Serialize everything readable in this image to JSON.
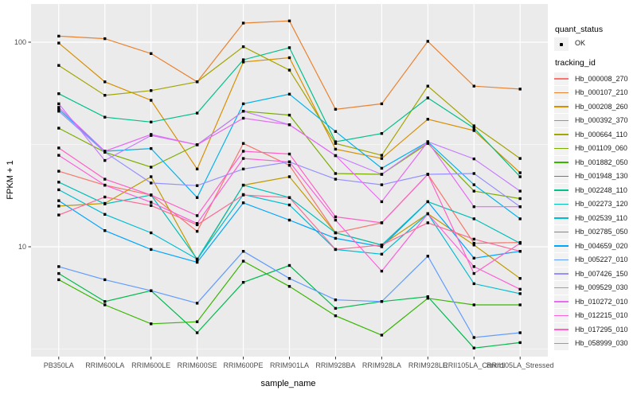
{
  "legend": {
    "quant_status": {
      "title": "quant_status",
      "items": [
        {
          "label": "OK",
          "marker": "black-point"
        }
      ]
    },
    "tracking_id": {
      "title": "tracking_id"
    }
  },
  "chart_data": {
    "type": "line",
    "title": "",
    "xlabel": "sample_name",
    "ylabel": "FPKM + 1",
    "y_scale": "log10",
    "ylim": [
      2.9,
      154
    ],
    "grid": true,
    "legend_position": "right",
    "y_axis_ticks": [
      {
        "value": 100,
        "label": "100"
      },
      {
        "value": 10,
        "label": "10"
      }
    ],
    "y_minor_gridlines": [
      31.623,
      3.1623
    ],
    "style": {
      "panel_bg": "#EBEBEB",
      "grid_color": "#FFFFFF",
      "marker_color": "#000000",
      "axis_text_color": "#4D4D4D",
      "tick_color": "#333333",
      "legend_key_bg": "#F2F2F2"
    },
    "categories": [
      "PB350LA",
      "RRIM600LA",
      "RRIM600LE",
      "RRIM600SE",
      "RRIM600PE",
      "RRIM901LA",
      "RRIM928BA",
      "RRIM928LA",
      "RRIM928LE",
      "RRII105LA_Control",
      "RRII105LA_Stressed"
    ],
    "series": [
      {
        "name": "Hb_000008_270",
        "color": "#F8766D",
        "values": [
          23.4,
          20.0,
          17.9,
          11.9,
          32.0,
          25.0,
          11.7,
          13.1,
          22.6,
          10.4,
          10.5
        ]
      },
      {
        "name": "Hb_000107_210",
        "color": "#EA8331",
        "values": [
          107,
          104,
          88,
          64,
          124,
          127,
          47,
          50,
          101,
          61,
          59
        ]
      },
      {
        "name": "Hb_000208_260",
        "color": "#D89000",
        "values": [
          99,
          64,
          52,
          24,
          80,
          84,
          30,
          27,
          42,
          37,
          23
        ]
      },
      {
        "name": "Hb_000392_370",
        "color": "#C09B00",
        "values": [
          15.8,
          16.3,
          22,
          8.6,
          20,
          22,
          11.7,
          10.2,
          14.5,
          10.2,
          7.0
        ]
      },
      {
        "name": "Hb_000664_110",
        "color": "#A3A500",
        "values": [
          77,
          55,
          58,
          64,
          95,
          73,
          32,
          28,
          61,
          39,
          27
        ]
      },
      {
        "name": "Hb_001109_060",
        "color": "#7CAE00",
        "values": [
          38,
          29,
          24.5,
          31.5,
          46,
          44,
          22.8,
          22.6,
          32,
          18.7,
          17.2
        ]
      },
      {
        "name": "Hb_001882_050",
        "color": "#39B600",
        "values": [
          6.9,
          5.2,
          4.2,
          4.3,
          8.5,
          6.4,
          4.6,
          3.7,
          5.6,
          5.2,
          5.2
        ]
      },
      {
        "name": "Hb_001948_130",
        "color": "#00BB4E",
        "values": [
          7.4,
          5.4,
          6.1,
          3.8,
          6.7,
          8.1,
          5.0,
          5.4,
          5.7,
          3.2,
          3.4
        ]
      },
      {
        "name": "Hb_002248_110",
        "color": "#00C08B",
        "values": [
          56,
          43,
          40.7,
          45,
          82,
          94,
          32.6,
          35.8,
          53.4,
          38,
          22
        ]
      },
      {
        "name": "Hb_002273_120",
        "color": "#00C0B8",
        "values": [
          20.7,
          16.2,
          17.9,
          8.7,
          20,
          17.4,
          11.7,
          10.2,
          16.6,
          13.7,
          10.4
        ]
      },
      {
        "name": "Hb_002539_110",
        "color": "#00BDD3",
        "values": [
          19,
          14.4,
          11.7,
          8.7,
          18,
          16,
          9.7,
          9.2,
          14.5,
          6.6,
          5.9
        ]
      },
      {
        "name": "Hb_002785_050",
        "color": "#00B4EF",
        "values": [
          47,
          29.3,
          30.2,
          17.4,
          50,
          55.7,
          36.6,
          24.2,
          32.6,
          20.1,
          13.7
        ]
      },
      {
        "name": "Hb_004659_020",
        "color": "#00A5FF",
        "values": [
          16.8,
          12.0,
          9.7,
          8.4,
          16.4,
          13.5,
          11,
          10,
          16.6,
          8.8,
          9.5
        ]
      },
      {
        "name": "Hb_005227_010",
        "color": "#619CFF",
        "values": [
          8.0,
          6.9,
          6.1,
          5.3,
          9.5,
          7.0,
          5.5,
          5.4,
          9.0,
          3.6,
          3.8
        ]
      },
      {
        "name": "Hb_007426_150",
        "color": "#9590FF",
        "values": [
          46,
          29,
          20.5,
          19.9,
          24,
          26,
          21.4,
          20.1,
          22.6,
          22.8,
          15.7
        ]
      },
      {
        "name": "Hb_009529_030",
        "color": "#C77CFF",
        "values": [
          50,
          26.4,
          35,
          31.5,
          46,
          39.5,
          27.9,
          22.6,
          32.6,
          26.9,
          18.7
        ]
      },
      {
        "name": "Hb_010272_010",
        "color": "#E76BF3",
        "values": [
          48,
          29.3,
          35.4,
          31.5,
          42.5,
          39.5,
          27.9,
          16.6,
          32.6,
          15.7,
          15.7
        ]
      },
      {
        "name": "Hb_012215_010",
        "color": "#FA62DB",
        "values": [
          28,
          20,
          16.5,
          13,
          27,
          26,
          13.5,
          7.6,
          14.5,
          8.0,
          6.2
        ]
      },
      {
        "name": "Hb_017295_010",
        "color": "#FF61C9",
        "values": [
          30.4,
          21.4,
          17.9,
          14.2,
          29.3,
          28.4,
          14.0,
          13.1,
          22.6,
          7.4,
          10.4
        ]
      },
      {
        "name": "Hb_058999_030",
        "color": "#FF6A98",
        "values": [
          14.3,
          17.5,
          15.9,
          12.8,
          17.9,
          17.4,
          9.7,
          10.2,
          13.1,
          10.9,
          9.5
        ]
      }
    ]
  }
}
